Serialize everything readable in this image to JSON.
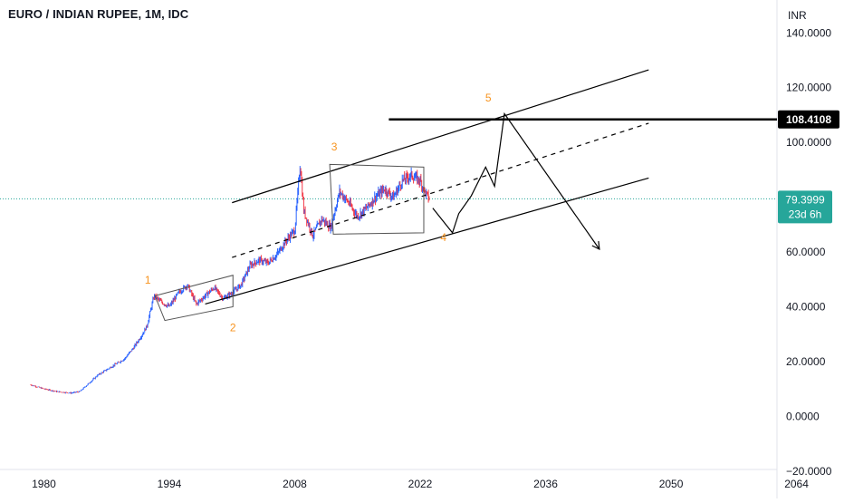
{
  "header": {
    "title": "EURO / INDIAN RUPEE, 1M, IDC"
  },
  "price_axis": {
    "currency": "INR",
    "ticks": [
      {
        "value": 140,
        "label": "140.0000"
      },
      {
        "value": 120,
        "label": "120.0000"
      },
      {
        "value": 100,
        "label": "100.0000"
      },
      {
        "value": 60,
        "label": "60.0000"
      },
      {
        "value": 40,
        "label": "40.0000"
      },
      {
        "value": 20,
        "label": "20.0000"
      },
      {
        "value": 0,
        "label": "0.0000"
      },
      {
        "value": -20,
        "label": "−20.0000"
      }
    ]
  },
  "time_axis": {
    "ticks": [
      {
        "value": 1980,
        "label": "1980"
      },
      {
        "value": 1994,
        "label": "1994"
      },
      {
        "value": 2008,
        "label": "2008"
      },
      {
        "value": 2022,
        "label": "2022"
      },
      {
        "value": 2036,
        "label": "2036"
      },
      {
        "value": 2050,
        "label": "2050"
      },
      {
        "value": 2064,
        "label": "2064"
      }
    ]
  },
  "badges": {
    "level": {
      "value": 108.4108,
      "label": "108.4108",
      "bg": "#000000",
      "fg": "#ffffff"
    },
    "last_price": {
      "value": 79.3999,
      "label": "79.3999",
      "countdown": "23d 6h",
      "bg": "#26a69a",
      "fg": "#ffffff"
    }
  },
  "colors": {
    "up": "#2962ff",
    "down": "#f23645",
    "wave_label": "#f7931e",
    "drawing": "#000000",
    "last_price_line": "#26a69a",
    "grid_border": "#e0e3eb",
    "axis_text": "#131722"
  },
  "chart_data": {
    "type": "line",
    "title": "EURO / INDIAN RUPEE, 1M, IDC",
    "ylabel": "INR",
    "ylim": [
      -30,
      152
    ],
    "xlim": [
      1975.1,
      2069.3
    ],
    "grid": false,
    "series": [
      {
        "values_note": "",
        "x": [
          1978.5,
          1980,
          1981.5,
          1983,
          1984,
          1985,
          1986,
          1987,
          1988,
          1989,
          1990,
          1991,
          1991.5,
          1992,
          1992.3,
          1993,
          1994,
          1995,
          1996,
          1997,
          1998,
          1999,
          2000,
          2001,
          2002,
          2003,
          2004,
          2005,
          2006,
          2007,
          2008,
          2008.6,
          2009,
          2010,
          2011,
          2012,
          2013,
          2014,
          2015,
          2016,
          2017,
          2018,
          2019,
          2020,
          2021,
          2022,
          2022.5,
          2023
        ],
        "y": [
          11.5,
          10,
          9,
          8.5,
          9,
          12,
          15,
          17,
          19,
          21,
          25,
          30,
          33,
          40,
          44,
          42,
          40,
          45,
          48,
          41,
          44,
          47,
          43,
          45,
          48,
          55,
          57,
          56,
          59,
          64,
          68,
          92,
          75,
          66,
          72,
          69,
          82,
          78,
          73,
          76,
          80,
          83,
          80,
          86,
          88,
          86,
          82,
          79.3999
        ]
      }
    ],
    "annotations": {
      "wave_labels": [
        {
          "text": "1",
          "x": 1991.6,
          "y": 48.5
        },
        {
          "text": "2",
          "x": 2001.1,
          "y": 31
        },
        {
          "text": "3",
          "x": 2012.4,
          "y": 97
        },
        {
          "text": "4",
          "x": 2024.6,
          "y": 64
        },
        {
          "text": "5",
          "x": 2029.6,
          "y": 115
        }
      ],
      "channel_upper": [
        [
          2001,
          78
        ],
        [
          2047.5,
          126.5
        ]
      ],
      "channel_middle_dashed": [
        [
          2001,
          58
        ],
        [
          2047.5,
          107
        ]
      ],
      "channel_lower": [
        [
          1998,
          41
        ],
        [
          2047.5,
          87
        ]
      ],
      "horizontal_level": {
        "y": 108.4108,
        "x_start": 2018.5
      },
      "wave1_triangle": [
        [
          1992.4,
          44
        ],
        [
          2001.1,
          51.5
        ],
        [
          2001.1,
          40
        ],
        [
          1993.5,
          35
        ]
      ],
      "wave3_box": [
        [
          2011.9,
          92
        ],
        [
          2022.4,
          91
        ],
        [
          2022.4,
          67
        ],
        [
          2012.3,
          66.5
        ]
      ],
      "projection_path": [
        [
          2023.4,
          76
        ],
        [
          2025.6,
          67
        ],
        [
          2026.3,
          74
        ],
        [
          2027.7,
          80.5
        ],
        [
          2029.3,
          91
        ],
        [
          2030.3,
          84
        ],
        [
          2031.4,
          110.5
        ],
        [
          2042.0,
          61
        ]
      ]
    }
  }
}
